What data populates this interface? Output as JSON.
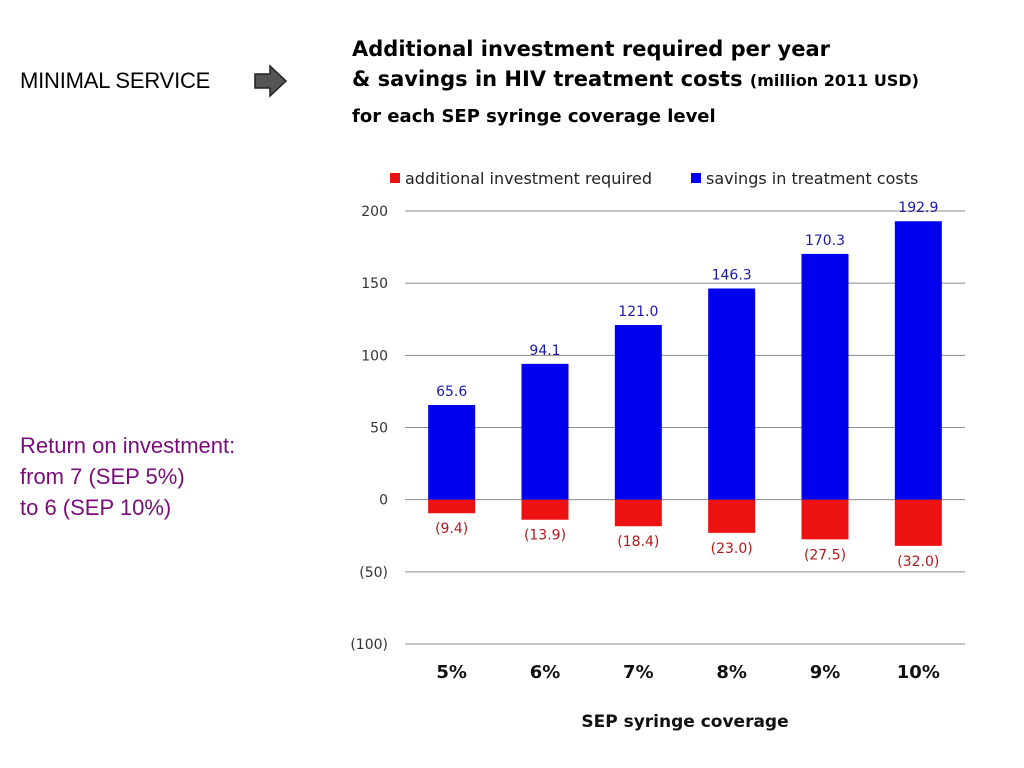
{
  "slide": {
    "section_label": "MINIMAL SERVICE",
    "arrow_icon": "right-arrow-icon",
    "title_line1": "Additional investment required per year",
    "title_line2_main": "& savings in HIV treatment costs",
    "title_line2_unit": "(million 2011 USD)",
    "title_line3": "for each SEP syringe coverage level",
    "roi_line1": "Return on investment:",
    "roi_line2": "from 7 (SEP 5%)",
    "roi_line3": "to 6 (SEP 10%)"
  },
  "colors": {
    "savings": "#0000ee",
    "investment": "#ee1111",
    "roi_text": "#7a0b7a"
  },
  "chart_data": {
    "type": "bar",
    "categories": [
      "5%",
      "6%",
      "7%",
      "8%",
      "9%",
      "10%"
    ],
    "series": [
      {
        "name": "additional investment required",
        "values": [
          -9.4,
          -13.9,
          -18.4,
          -23.0,
          -27.5,
          -32.0
        ],
        "labels": [
          "(9.4)",
          "(13.9)",
          "(18.4)",
          "(23.0)",
          "(27.5)",
          "(32.0)"
        ]
      },
      {
        "name": "savings in treatment costs",
        "values": [
          65.6,
          94.1,
          121.0,
          146.3,
          170.3,
          192.9
        ],
        "labels": [
          "65.6",
          "94.1",
          "121.0",
          "146.3",
          "170.3",
          "192.9"
        ]
      }
    ],
    "xlabel": "SEP syringe coverage",
    "ylim": [
      -100,
      200
    ],
    "yticks": [
      200,
      150,
      100,
      50,
      0,
      -50,
      -100
    ],
    "ytick_labels": [
      "200",
      "150",
      "100",
      "50",
      "0",
      "(50)",
      "(100)"
    ],
    "grid": true,
    "legend": "top"
  }
}
